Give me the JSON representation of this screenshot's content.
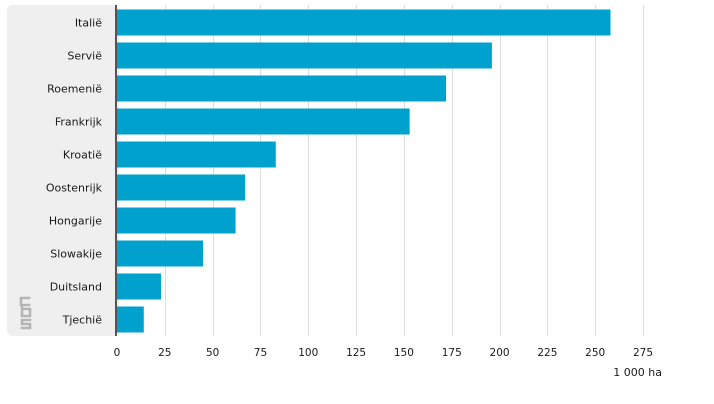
{
  "chart_data": {
    "type": "bar",
    "orientation": "horizontal",
    "categories": [
      "Italië",
      "Servië",
      "Roemenië",
      "Frankrijk",
      "Kroatië",
      "Oostenrijk",
      "Hongarije",
      "Slowakije",
      "Duitsland",
      "Tjechië"
    ],
    "values": [
      258,
      196,
      172,
      153,
      83,
      67,
      62,
      45,
      23,
      14
    ],
    "xlim": [
      0,
      275
    ],
    "xticks": [
      0,
      25,
      50,
      75,
      100,
      125,
      150,
      175,
      200,
      225,
      250,
      275
    ],
    "xunit": "1 000 ha",
    "grid": "vertical",
    "bar_color": "#00a1cd"
  },
  "logo": {
    "icon": "cbs-logo-icon"
  }
}
